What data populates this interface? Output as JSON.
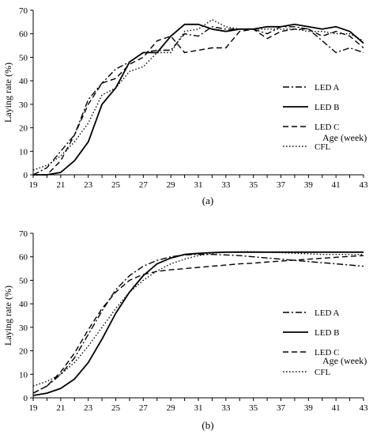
{
  "chart_data": [
    {
      "type": "line",
      "panel_label": "(a)",
      "xlabel": "Age (week)",
      "ylabel": "Laying rate (%)",
      "xlim": [
        19,
        43
      ],
      "ylim": [
        0,
        70
      ],
      "xticks": [
        19,
        21,
        23,
        25,
        27,
        29,
        31,
        33,
        35,
        37,
        39,
        41,
        43
      ],
      "yticks": [
        0,
        10,
        20,
        30,
        40,
        50,
        60,
        70
      ],
      "grid": false,
      "legend": "right",
      "series": [
        {
          "name": "LED A",
          "dash": "dashdot",
          "x": [
            19,
            20,
            21,
            22,
            23,
            24,
            25,
            26,
            27,
            28,
            29,
            30,
            31,
            32,
            33,
            34,
            35,
            36,
            37,
            38,
            39,
            40,
            41,
            42,
            43
          ],
          "y": [
            0,
            3,
            10,
            17,
            32,
            39,
            45,
            48,
            52,
            53,
            53,
            60,
            59,
            63,
            62,
            62,
            62,
            60,
            63,
            63,
            62,
            57,
            52,
            54,
            52
          ]
        },
        {
          "name": "LED B",
          "dash": "solid",
          "x": [
            19,
            20,
            21,
            22,
            23,
            24,
            25,
            26,
            27,
            28,
            29,
            30,
            31,
            32,
            33,
            34,
            35,
            36,
            37,
            38,
            39,
            40,
            41,
            42,
            43
          ],
          "y": [
            0,
            0,
            1,
            6,
            14,
            30,
            37,
            48,
            52,
            52,
            59,
            64,
            64,
            62,
            61,
            62,
            62,
            63,
            63,
            64,
            63,
            62,
            63,
            61,
            56
          ]
        },
        {
          "name": "LED C",
          "dash": "dashed",
          "x": [
            19,
            20,
            21,
            22,
            23,
            24,
            25,
            26,
            27,
            28,
            29,
            30,
            31,
            32,
            33,
            34,
            35,
            36,
            37,
            38,
            39,
            40,
            41,
            42,
            43
          ],
          "y": [
            0,
            0,
            6,
            17,
            30,
            39,
            41,
            47,
            50,
            57,
            59,
            52,
            53,
            54,
            54,
            61,
            62,
            58,
            61,
            62,
            62,
            59,
            61,
            59,
            54
          ]
        },
        {
          "name": "CFL",
          "dash": "dotted",
          "x": [
            19,
            20,
            21,
            22,
            23,
            24,
            25,
            26,
            27,
            28,
            29,
            30,
            31,
            32,
            33,
            34,
            35,
            36,
            37,
            38,
            39,
            40,
            41,
            42,
            43
          ],
          "y": [
            2,
            4,
            8,
            14,
            22,
            34,
            37,
            44,
            46,
            52,
            52,
            61,
            62,
            66,
            63,
            62,
            62,
            62,
            62,
            62,
            61,
            61,
            60,
            60,
            57
          ]
        }
      ]
    },
    {
      "type": "line",
      "panel_label": "(b)",
      "xlabel": "Age (week)",
      "ylabel": "Laying rate (%)",
      "xlim": [
        19,
        43
      ],
      "ylim": [
        0,
        70
      ],
      "xticks": [
        19,
        21,
        23,
        25,
        27,
        29,
        31,
        33,
        35,
        37,
        39,
        41,
        43
      ],
      "yticks": [
        0,
        10,
        20,
        30,
        40,
        50,
        60,
        70
      ],
      "grid": false,
      "legend": "right",
      "series": [
        {
          "name": "LED A",
          "dash": "dashdot",
          "x": [
            19,
            20,
            21,
            22,
            23,
            24,
            25,
            26,
            27,
            28,
            29,
            30,
            31,
            32,
            33,
            34,
            35,
            36,
            37,
            38,
            39,
            40,
            41,
            42,
            43
          ],
          "y": [
            2,
            5,
            10,
            17,
            27,
            37,
            46,
            52,
            56,
            58.5,
            60,
            60.8,
            61,
            61,
            60.8,
            60.5,
            60,
            59.5,
            59,
            58.5,
            58,
            57.5,
            57,
            56.5,
            56
          ]
        },
        {
          "name": "LED B",
          "dash": "solid",
          "x": [
            19,
            20,
            21,
            22,
            23,
            24,
            25,
            26,
            27,
            28,
            29,
            30,
            31,
            32,
            33,
            34,
            35,
            36,
            37,
            38,
            39,
            40,
            41,
            42,
            43
          ],
          "y": [
            1,
            2,
            4,
            8,
            15,
            25,
            36,
            45,
            52,
            57,
            59.5,
            61,
            61.5,
            61.8,
            62,
            62,
            62,
            62,
            62,
            62,
            62,
            62,
            62,
            62,
            62
          ]
        },
        {
          "name": "LED C",
          "dash": "dashed",
          "x": [
            19,
            20,
            21,
            22,
            23,
            24,
            25,
            26,
            27,
            28,
            29,
            30,
            31,
            32,
            33,
            34,
            35,
            36,
            37,
            38,
            39,
            40,
            41,
            42,
            43
          ],
          "y": [
            2,
            5,
            11,
            19,
            29,
            38,
            45,
            50,
            52.5,
            53.8,
            54.5,
            55,
            55.5,
            56,
            56.5,
            57,
            57.3,
            57.8,
            58.2,
            58.6,
            59,
            59.4,
            59.8,
            60.2,
            60.5
          ]
        },
        {
          "name": "CFL",
          "dash": "dotted",
          "x": [
            19,
            20,
            21,
            22,
            23,
            24,
            25,
            26,
            27,
            28,
            29,
            30,
            31,
            32,
            33,
            34,
            35,
            36,
            37,
            38,
            39,
            40,
            41,
            42,
            43
          ],
          "y": [
            5,
            7,
            10,
            15,
            22,
            30,
            38,
            45,
            50,
            54,
            57,
            59,
            60.5,
            61.5,
            62,
            62.2,
            62.2,
            62,
            61.8,
            61.5,
            61.3,
            61,
            61,
            61,
            61
          ]
        }
      ]
    }
  ]
}
